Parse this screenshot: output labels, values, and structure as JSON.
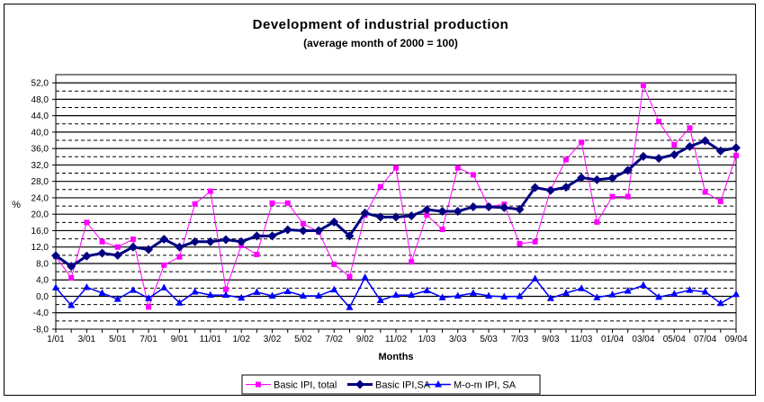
{
  "chart_data": {
    "type": "line",
    "title": "Development of industrial production",
    "subtitle": "(average month of 2000 = 100)",
    "xlabel": "Months",
    "ylabel": "%",
    "ylim": [
      -8,
      54
    ],
    "yticks": [
      "-8,0",
      "-4,0",
      "0,0",
      "4,0",
      "8,0",
      "12,0",
      "16,0",
      "20,0",
      "24,0",
      "28,0",
      "32,0",
      "36,0",
      "40,0",
      "44,0",
      "48,0",
      "52,0"
    ],
    "grid": true,
    "legend_position": "bottom",
    "categories": [
      "1/01",
      "2/01",
      "3/01",
      "4/01",
      "5/01",
      "6/01",
      "7/01",
      "8/01",
      "9/01",
      "10/01",
      "11/01",
      "12/01",
      "1/02",
      "2/02",
      "3/02",
      "4/02",
      "5/02",
      "6/02",
      "7/02",
      "8/02",
      "9/02",
      "10/02",
      "11/02",
      "12/02",
      "1/03",
      "2/03",
      "3/03",
      "4/03",
      "5/03",
      "6/03",
      "7/03",
      "8/03",
      "9/03",
      "10/03",
      "11/03",
      "12/03",
      "01/04",
      "02/04",
      "03/04",
      "04/04",
      "05/04",
      "06/04",
      "07/04",
      "08/04",
      "09/04"
    ],
    "tick_labels": [
      "1/01",
      "3/01",
      "5/01",
      "7/01",
      "9/01",
      "11/01",
      "1/02",
      "3/02",
      "5/02",
      "7/02",
      "9/02",
      "11/02",
      "1/03",
      "3/03",
      "5/03",
      "7/03",
      "9/03",
      "11/03",
      "01/04",
      "03/04",
      "05/04",
      "07/04",
      "09/04"
    ],
    "series": [
      {
        "name": "Basic IPI, total",
        "color": "#FF00FF",
        "marker": "square",
        "values": [
          9.7,
          4.5,
          18.0,
          13.3,
          12.0,
          13.9,
          -2.6,
          7.6,
          9.6,
          22.5,
          25.6,
          1.7,
          12.4,
          10.2,
          22.7,
          22.7,
          17.7,
          15.7,
          7.8,
          4.8,
          19.8,
          26.7,
          31.3,
          8.4,
          19.8,
          16.3,
          31.3,
          29.6,
          21.9,
          22.4,
          12.8,
          13.3,
          25.9,
          33.3,
          37.5,
          18.1,
          24.3,
          24.3,
          51.4,
          42.6,
          36.9,
          41.0,
          25.4,
          23.1,
          34.3
        ]
      },
      {
        "name": "Basic IPI,SA",
        "color": "#000080",
        "marker": "diamond",
        "values": [
          9.9,
          7.3,
          9.8,
          10.5,
          10.0,
          12.0,
          11.4,
          13.9,
          12.0,
          13.3,
          13.3,
          13.8,
          13.3,
          14.7,
          14.7,
          16.2,
          16.0,
          16.0,
          18.1,
          14.7,
          20.3,
          19.3,
          19.3,
          19.6,
          21.1,
          20.7,
          20.7,
          21.8,
          21.8,
          21.6,
          21.2,
          26.5,
          25.8,
          26.6,
          28.9,
          28.4,
          28.8,
          30.7,
          34.1,
          33.6,
          34.5,
          36.5,
          37.9,
          35.4,
          36.2
        ]
      },
      {
        "name": "M-o-m IPI, SA",
        "color": "#0000FF",
        "marker": "triangle",
        "values": [
          2.1,
          -2.2,
          2.2,
          0.8,
          -0.7,
          1.5,
          -0.5,
          2.1,
          -1.6,
          1.1,
          0.3,
          0.3,
          -0.4,
          1.0,
          0.1,
          1.2,
          0.1,
          0.1,
          1.6,
          -2.7,
          4.6,
          -1.0,
          0.3,
          0.3,
          1.4,
          -0.3,
          0.1,
          0.8,
          0.1,
          -0.1,
          0.0,
          4.3,
          -0.5,
          0.8,
          1.9,
          -0.3,
          0.4,
          1.3,
          2.7,
          -0.2,
          0.6,
          1.5,
          1.1,
          -1.7,
          0.5
        ]
      }
    ]
  }
}
